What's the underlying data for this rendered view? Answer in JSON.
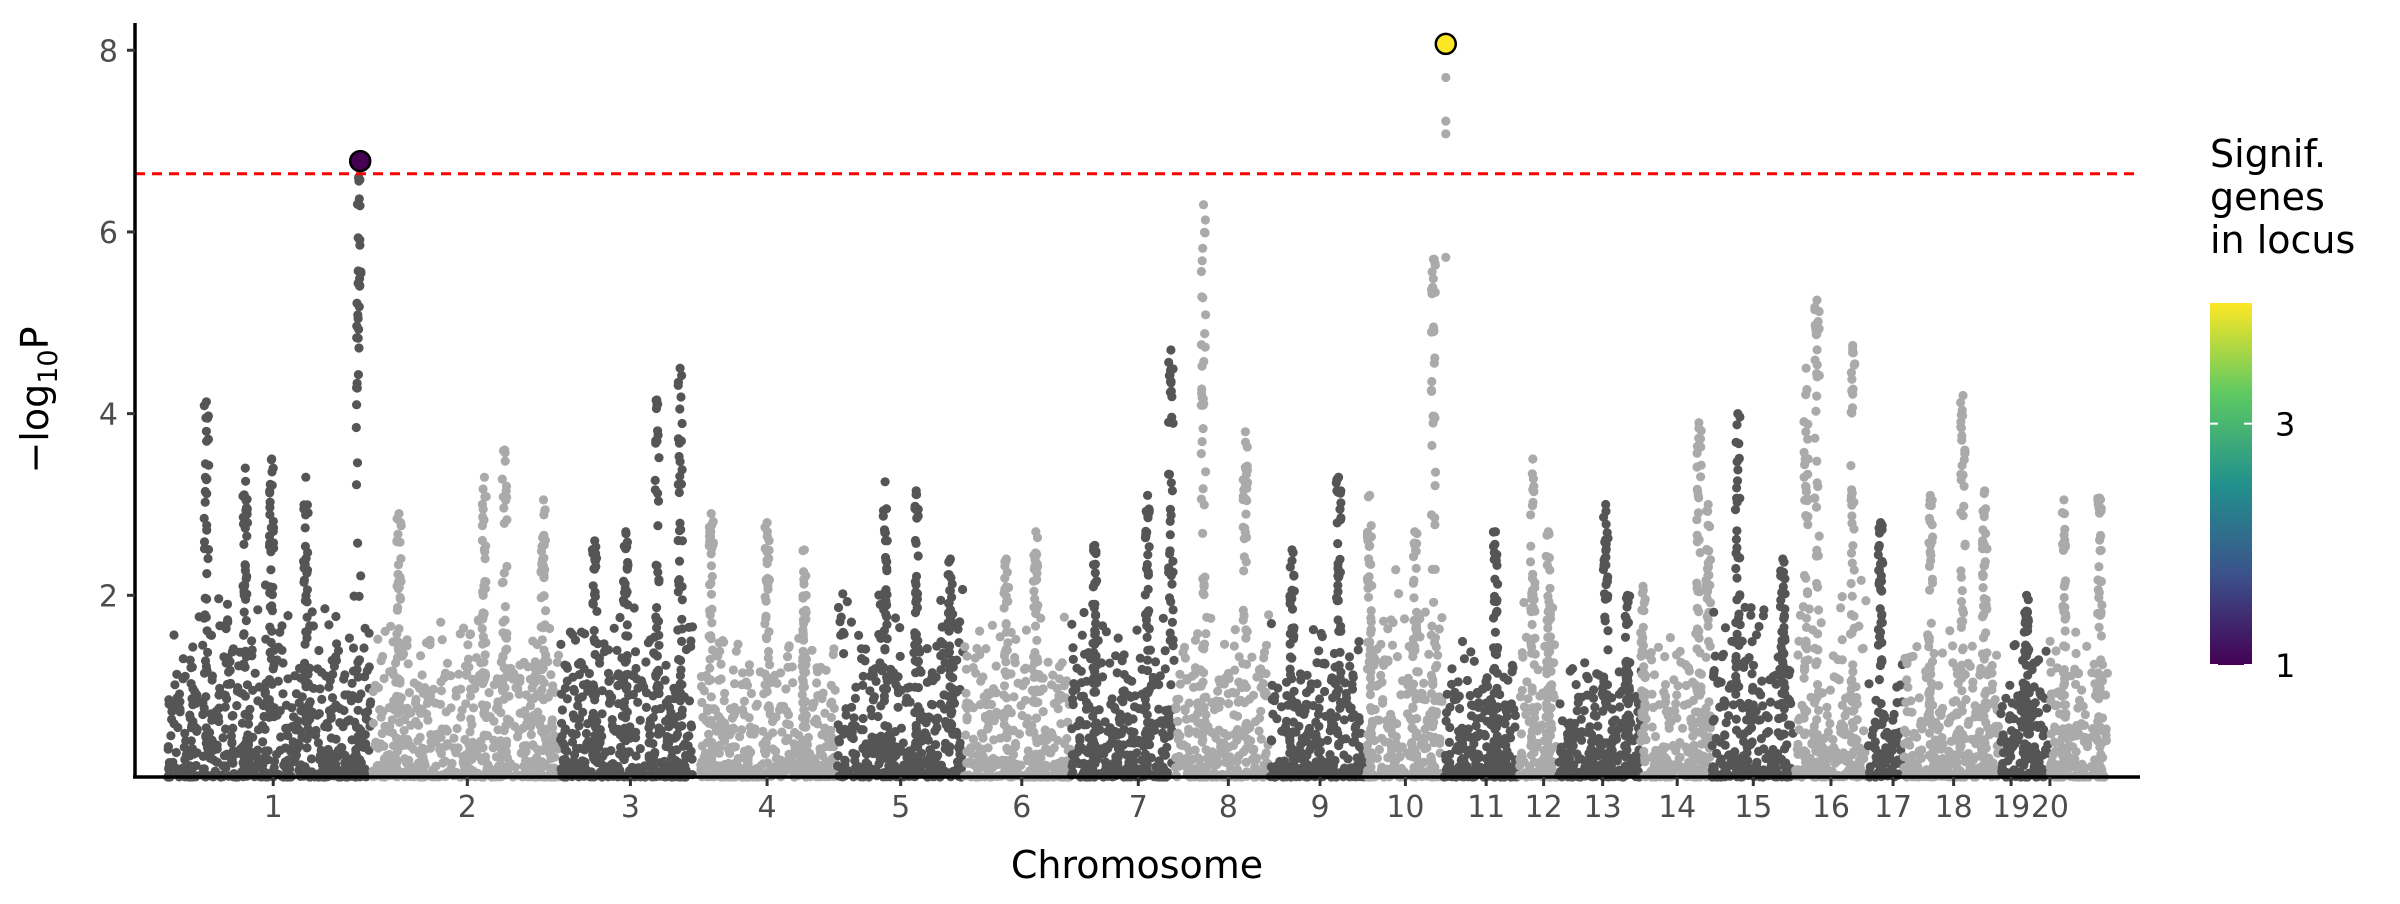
{
  "chart_data": {
    "type": "scatter",
    "subtype": "manhattan",
    "title": "",
    "xlabel": "Chromosome",
    "ylabel_main": "−log",
    "ylabel_sub": "10",
    "ylabel_end": "P",
    "xlim": [
      -42,
      2540
    ],
    "ylim": [
      0,
      8.3
    ],
    "yticks": [
      2,
      4,
      6,
      8
    ],
    "ytick_labels": [
      "2",
      "4",
      "6",
      "8"
    ],
    "significance_threshold": 6.64,
    "threshold_color": "#ff0000",
    "colors": {
      "odd": "#555555",
      "even": "#aaaaaa"
    },
    "chromosomes": [
      {
        "label": "1",
        "start": 0,
        "end": 262,
        "tick": 136,
        "peaks": [
          [
            50,
            4.13
          ],
          [
            100,
            3.4
          ],
          [
            134,
            3.5
          ],
          [
            178,
            3.3
          ],
          [
            246,
            6.6
          ]
        ],
        "base": 2.0
      },
      {
        "label": "2",
        "start": 264,
        "end": 504,
        "tick": 386,
        "peaks": [
          [
            298,
            2.9
          ],
          [
            408,
            3.3
          ],
          [
            434,
            3.6
          ],
          [
            484,
            3.05
          ]
        ],
        "base": 1.7
      },
      {
        "label": "3",
        "start": 506,
        "end": 676,
        "tick": 596,
        "peaks": [
          [
            550,
            2.6
          ],
          [
            590,
            2.7
          ],
          [
            630,
            4.15
          ],
          [
            660,
            4.5
          ]
        ],
        "base": 1.9
      },
      {
        "label": "4",
        "start": 686,
        "end": 860,
        "tick": 772,
        "peaks": [
          [
            700,
            2.9
          ],
          [
            772,
            2.8
          ],
          [
            820,
            2.5
          ]
        ],
        "base": 1.6
      },
      {
        "label": "5",
        "start": 862,
        "end": 1024,
        "tick": 944,
        "peaks": [
          [
            924,
            3.25
          ],
          [
            964,
            3.15
          ],
          [
            1008,
            2.4
          ]
        ],
        "base": 2.0
      },
      {
        "label": "6",
        "start": 1026,
        "end": 1162,
        "tick": 1100,
        "peaks": [
          [
            1118,
            2.7
          ],
          [
            1080,
            2.4
          ]
        ],
        "base": 1.7
      },
      {
        "label": "7",
        "start": 1164,
        "end": 1296,
        "tick": 1250,
        "peaks": [
          [
            1194,
            2.55
          ],
          [
            1262,
            3.1
          ],
          [
            1292,
            4.7
          ]
        ],
        "base": 1.8
      },
      {
        "label": "8",
        "start": 1298,
        "end": 1418,
        "tick": 1366,
        "peaks": [
          [
            1334,
            6.3
          ],
          [
            1388,
            3.8
          ]
        ],
        "base": 1.8
      },
      {
        "label": "9",
        "start": 1420,
        "end": 1542,
        "tick": 1484,
        "peaks": [
          [
            1448,
            2.5
          ],
          [
            1508,
            3.3
          ]
        ],
        "base": 1.7
      },
      {
        "label": "10",
        "start": 1544,
        "end": 1642,
        "tick": 1594,
        "peaks": [
          [
            1548,
            3.1
          ],
          [
            1606,
            2.7
          ],
          [
            1630,
            5.7
          ]
        ],
        "base": 2.2
      },
      {
        "label": "11",
        "start": 1644,
        "end": 1738,
        "tick": 1698,
        "peaks": [
          [
            1710,
            2.7
          ]
        ],
        "base": 1.4
      },
      {
        "label": "12",
        "start": 1740,
        "end": 1788,
        "tick": 1772,
        "peaks": [
          [
            1758,
            3.5
          ],
          [
            1778,
            2.7
          ]
        ],
        "base": 2.0
      },
      {
        "label": "13",
        "start": 1790,
        "end": 1898,
        "tick": 1848,
        "peaks": [
          [
            1852,
            3.0
          ],
          [
            1880,
            2.0
          ]
        ],
        "base": 1.3
      },
      {
        "label": "14",
        "start": 1900,
        "end": 1986,
        "tick": 1944,
        "peaks": [
          [
            1900,
            2.1
          ],
          [
            1972,
            3.9
          ],
          [
            1984,
            3.0
          ]
        ],
        "base": 1.6
      },
      {
        "label": "15",
        "start": 1988,
        "end": 2094,
        "tick": 2042,
        "peaks": [
          [
            2022,
            4.0
          ],
          [
            2080,
            2.4
          ]
        ],
        "base": 1.9
      },
      {
        "label": "16",
        "start": 2096,
        "end": 2188,
        "tick": 2142,
        "peaks": [
          [
            2124,
            5.25
          ],
          [
            2170,
            4.75
          ],
          [
            2110,
            4.5
          ]
        ],
        "base": 2.2
      },
      {
        "label": "17",
        "start": 2190,
        "end": 2234,
        "tick": 2222,
        "peaks": [
          [
            2206,
            2.8
          ]
        ],
        "base": 1.2
      },
      {
        "label": "18",
        "start": 2236,
        "end": 2358,
        "tick": 2300,
        "peaks": [
          [
            2312,
            4.2
          ],
          [
            2340,
            3.15
          ],
          [
            2270,
            3.1
          ]
        ],
        "base": 1.6
      },
      {
        "label": "19",
        "start": 2360,
        "end": 2422,
        "tick": 2374,
        "peaks": [
          [
            2394,
            2.0
          ]
        ],
        "base": 1.5
      },
      {
        "label": "20",
        "start": 2424,
        "end": 2498,
        "tick": 2424,
        "peaks": [
          [
            2442,
            3.05
          ],
          [
            2488,
            3.07
          ]
        ],
        "base": 1.6
      }
    ],
    "lead_snps": [
      {
        "chromosome": "1",
        "position": 248,
        "neglog10p": 6.78,
        "signif_genes": 1,
        "color": "#440154"
      },
      {
        "chromosome": "10",
        "position": 1646,
        "neglog10p": 8.07,
        "signif_genes": 4,
        "color": "#fde725"
      }
    ],
    "lead_tail_points": [
      [
        1646,
        7.7
      ],
      [
        1646,
        7.22
      ],
      [
        1646,
        7.08
      ],
      [
        1646,
        5.72
      ]
    ],
    "legend": {
      "title_lines": [
        "Signif.",
        "genes",
        "in locus"
      ],
      "range": [
        1,
        4
      ],
      "ticks": [
        3,
        1
      ],
      "tick_labels": [
        "3",
        "1"
      ],
      "position": "right",
      "gradient": [
        "#440154",
        "#3b528b",
        "#21918c",
        "#5ec962",
        "#fde725"
      ]
    }
  }
}
